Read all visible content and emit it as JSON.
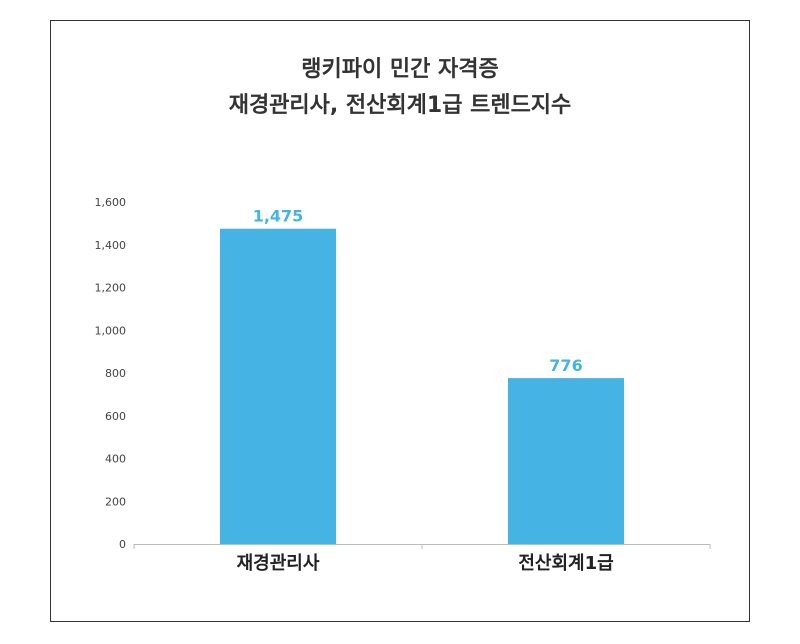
{
  "chart_data": {
    "type": "bar",
    "title_lines": [
      "랭키파이 민간 자격증",
      "재경관리사, 전산회계1급 트렌드지수"
    ],
    "categories": [
      "재경관리사",
      "전산회계1급"
    ],
    "values": [
      1475,
      776
    ],
    "data_labels": [
      "1,475",
      "776"
    ],
    "yticks": [
      "0",
      "200",
      "400",
      "600",
      "800",
      "1,000",
      "1,200",
      "1,400",
      "1,600"
    ],
    "ylim": [
      0,
      1600
    ],
    "grid": false,
    "legend": "none",
    "bar_color": "#45b3e3",
    "label_color": "#45b3e3"
  }
}
